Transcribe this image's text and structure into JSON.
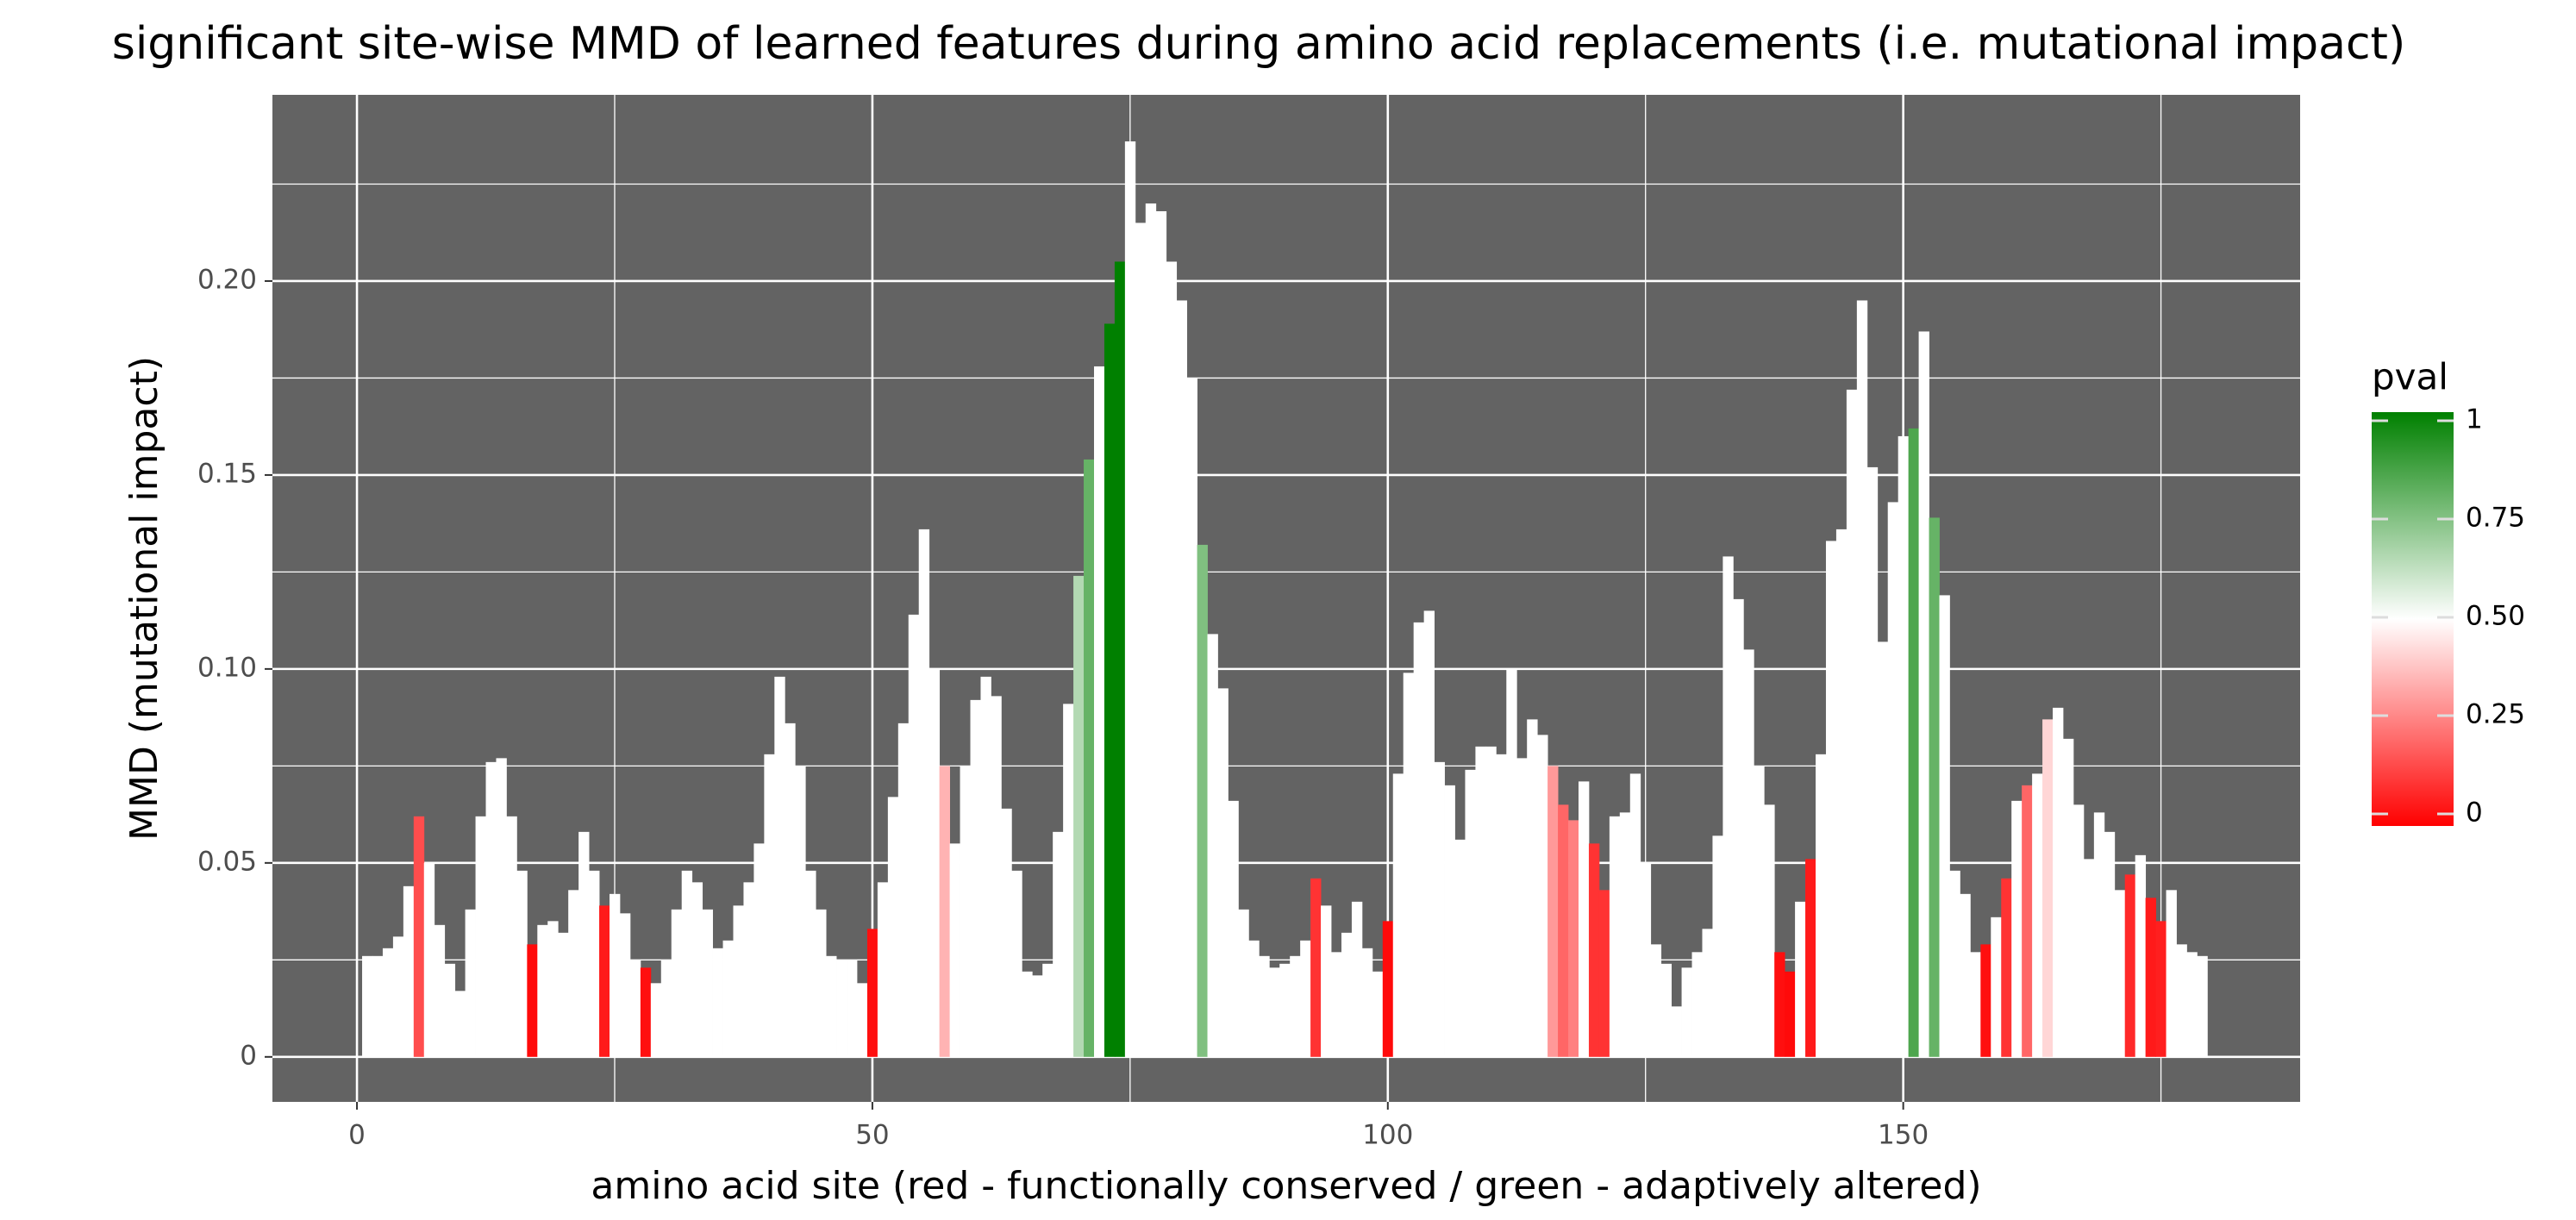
{
  "chart_data": {
    "type": "bar",
    "title": "significant site-wise MMD of learned features during amino acid replacements (i.e. mutational impact)",
    "x_label": "amino acid site (red - functionally conserved / green - adaptively altered)",
    "y_label": "MMD (mutational impact)",
    "legend_title": "pval",
    "x": [
      1,
      2,
      3,
      4,
      5,
      6,
      7,
      8,
      9,
      10,
      11,
      12,
      13,
      14,
      15,
      16,
      17,
      18,
      19,
      20,
      21,
      22,
      23,
      24,
      25,
      26,
      27,
      28,
      29,
      30,
      31,
      32,
      33,
      34,
      35,
      36,
      37,
      38,
      39,
      40,
      41,
      42,
      43,
      44,
      45,
      46,
      47,
      48,
      49,
      50,
      51,
      52,
      53,
      54,
      55,
      56,
      57,
      58,
      59,
      60,
      61,
      62,
      63,
      64,
      65,
      66,
      67,
      68,
      69,
      70,
      71,
      72,
      73,
      74,
      75,
      76,
      77,
      78,
      79,
      80,
      81,
      82,
      83,
      84,
      85,
      86,
      87,
      88,
      89,
      90,
      91,
      92,
      93,
      94,
      95,
      96,
      97,
      98,
      99,
      100,
      101,
      102,
      103,
      104,
      105,
      106,
      107,
      108,
      109,
      110,
      111,
      112,
      113,
      114,
      115,
      116,
      117,
      118,
      119,
      120,
      121,
      122,
      123,
      124,
      125,
      126,
      127,
      128,
      129,
      130,
      131,
      132,
      133,
      134,
      135,
      136,
      137,
      138,
      139,
      140,
      141,
      142,
      143,
      144,
      145,
      146,
      147,
      148,
      149,
      150,
      151,
      152,
      153,
      154,
      155,
      156,
      157,
      158,
      159,
      160,
      161,
      162,
      163,
      164,
      165,
      166,
      167,
      168,
      169,
      170,
      171,
      172,
      173,
      174,
      175,
      176,
      177,
      178,
      179
    ],
    "values": [
      0.026,
      0.026,
      0.028,
      0.031,
      0.044,
      0.062,
      0.05,
      0.034,
      0.024,
      0.017,
      0.038,
      0.062,
      0.076,
      0.077,
      0.062,
      0.048,
      0.029,
      0.034,
      0.035,
      0.032,
      0.043,
      0.058,
      0.048,
      0.039,
      0.042,
      0.037,
      0.025,
      0.023,
      0.019,
      0.025,
      0.038,
      0.048,
      0.045,
      0.038,
      0.028,
      0.03,
      0.039,
      0.045,
      0.055,
      0.078,
      0.098,
      0.086,
      0.075,
      0.048,
      0.038,
      0.026,
      0.025,
      0.025,
      0.019,
      0.033,
      0.045,
      0.067,
      0.086,
      0.114,
      0.136,
      0.1,
      0.075,
      0.055,
      0.075,
      0.092,
      0.098,
      0.093,
      0.064,
      0.048,
      0.022,
      0.021,
      0.024,
      0.058,
      0.091,
      0.124,
      0.154,
      0.178,
      0.189,
      0.205,
      0.236,
      0.215,
      0.22,
      0.218,
      0.205,
      0.195,
      0.175,
      0.132,
      0.109,
      0.095,
      0.066,
      0.038,
      0.03,
      0.026,
      0.023,
      0.024,
      0.026,
      0.03,
      0.046,
      0.039,
      0.027,
      0.032,
      0.04,
      0.028,
      0.022,
      0.035,
      0.073,
      0.099,
      0.112,
      0.115,
      0.076,
      0.07,
      0.056,
      0.074,
      0.08,
      0.08,
      0.078,
      0.1,
      0.077,
      0.087,
      0.083,
      0.075,
      0.065,
      0.061,
      0.071,
      0.055,
      0.043,
      0.062,
      0.063,
      0.073,
      0.05,
      0.029,
      0.024,
      0.013,
      0.023,
      0.027,
      0.033,
      0.057,
      0.129,
      0.118,
      0.105,
      0.075,
      0.065,
      0.027,
      0.022,
      0.04,
      0.051,
      0.078,
      0.133,
      0.136,
      0.172,
      0.195,
      0.152,
      0.107,
      0.143,
      0.16,
      0.162,
      0.187,
      0.139,
      0.119,
      0.048,
      0.042,
      0.027,
      0.029,
      0.036,
      0.046,
      0.066,
      0.07,
      0.073,
      0.087,
      0.09,
      0.082,
      0.065,
      0.051,
      0.063,
      0.058,
      0.043,
      0.047,
      0.052,
      0.041,
      0.035,
      0.043,
      0.029,
      0.027,
      0.026
    ],
    "pvals": [
      0.5,
      0.5,
      0.5,
      0.5,
      0.5,
      0.15,
      0.5,
      0.5,
      0.5,
      0.5,
      0.5,
      0.5,
      0.5,
      0.5,
      0.5,
      0.5,
      0.02,
      0.5,
      0.5,
      0.5,
      0.5,
      0.5,
      0.5,
      0.05,
      0.5,
      0.5,
      0.5,
      0.03,
      0.5,
      0.5,
      0.5,
      0.5,
      0.5,
      0.5,
      0.5,
      0.5,
      0.5,
      0.5,
      0.5,
      0.5,
      0.5,
      0.5,
      0.5,
      0.5,
      0.5,
      0.5,
      0.5,
      0.5,
      0.5,
      0.03,
      0.5,
      0.5,
      0.5,
      0.5,
      0.5,
      0.5,
      0.35,
      0.5,
      0.5,
      0.5,
      0.5,
      0.5,
      0.5,
      0.5,
      0.5,
      0.5,
      0.5,
      0.5,
      0.5,
      0.65,
      0.8,
      0.5,
      1,
      1,
      0.5,
      0.5,
      0.5,
      0.5,
      0.5,
      0.5,
      0.5,
      0.75,
      0.5,
      0.5,
      0.5,
      0.5,
      0.5,
      0.5,
      0.5,
      0.5,
      0.5,
      0.5,
      0.1,
      0.5,
      0.5,
      0.5,
      0.5,
      0.5,
      0.5,
      0.02,
      0.5,
      0.5,
      0.5,
      0.5,
      0.5,
      0.5,
      0.5,
      0.5,
      0.5,
      0.5,
      0.5,
      0.5,
      0.5,
      0.5,
      0.5,
      0.3,
      0.2,
      0.25,
      0.5,
      0.1,
      0.1,
      0.5,
      0.5,
      0.5,
      0.5,
      0.5,
      0.5,
      0.5,
      0.5,
      0.5,
      0.5,
      0.5,
      0.5,
      0.5,
      0.5,
      0.5,
      0.5,
      0.03,
      0.02,
      0.5,
      0.05,
      0.5,
      0.5,
      0.5,
      0.5,
      0.5,
      0.5,
      0.5,
      0.5,
      0.5,
      0.85,
      0.5,
      0.8,
      0.5,
      0.5,
      0.5,
      0.5,
      0.03,
      0.5,
      0.1,
      0.5,
      0.2,
      0.5,
      0.42,
      0.5,
      0.5,
      0.5,
      0.5,
      0.5,
      0.5,
      0.5,
      0.08,
      0.5,
      0.05,
      0.06,
      0.5,
      0.5,
      0.5,
      0.5
    ],
    "color_scale": [
      {
        "value": 0,
        "color": "#ff0000"
      },
      {
        "value": 0.5,
        "color": "#ffffff"
      },
      {
        "value": 1,
        "color": "#008000"
      }
    ],
    "legend_ticks": [
      0,
      0.25,
      {
        "value": 0.5,
        "label": "0.50"
      },
      0.75,
      1
    ],
    "xlim": [
      -8.2,
      188.5
    ],
    "ylim": [
      -0.0116,
      0.248
    ],
    "xticks": [
      0,
      50,
      100,
      150
    ],
    "yticks": [
      0,
      0.05,
      {
        "value": 0.1,
        "label": "0.10"
      },
      0.15,
      {
        "value": 0.2,
        "label": "0.20"
      }
    ],
    "grid": true,
    "minor_grid": true,
    "panel_color": "#636363"
  }
}
